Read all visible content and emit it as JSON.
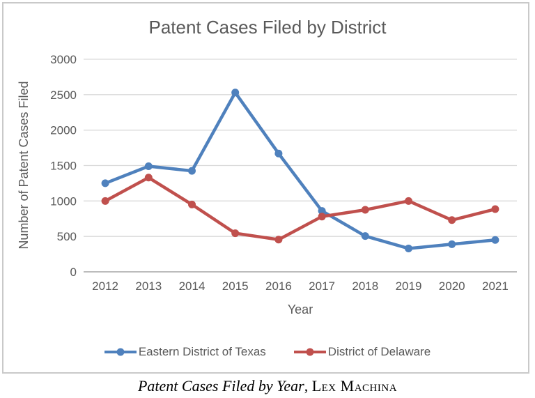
{
  "chart_data": {
    "type": "line",
    "title": "Patent Cases Filed by District",
    "xlabel": "Year",
    "ylabel": "Number of Patent Cases Filed",
    "categories": [
      "2012",
      "2013",
      "2014",
      "2015",
      "2016",
      "2017",
      "2018",
      "2019",
      "2020",
      "2021"
    ],
    "series": [
      {
        "name": "Eastern District of Texas",
        "color": "#4F81BD",
        "values": [
          1250,
          1490,
          1425,
          2530,
          1670,
          860,
          505,
          330,
          390,
          450
        ]
      },
      {
        "name": "District of Delaware",
        "color": "#C0504D",
        "values": [
          1000,
          1330,
          950,
          545,
          455,
          780,
          875,
          1000,
          730,
          885
        ]
      }
    ],
    "ylim": [
      0,
      3000
    ],
    "yticks": [
      0,
      500,
      1000,
      1500,
      2000,
      2500,
      3000
    ],
    "grid": true,
    "legend_position": "bottom"
  },
  "caption": {
    "italic_text": "Patent Cases Filed by Year",
    "separator": ", ",
    "publisher_smallcaps": "Lex Machina"
  },
  "colors": {
    "title_text": "#595959",
    "axis_text": "#595959",
    "gridline": "#d9d9d9",
    "axis_line": "#a6a6a6",
    "frame_border": "#c9c9c9",
    "series_blue": "#4F81BD",
    "series_red": "#C0504D"
  }
}
